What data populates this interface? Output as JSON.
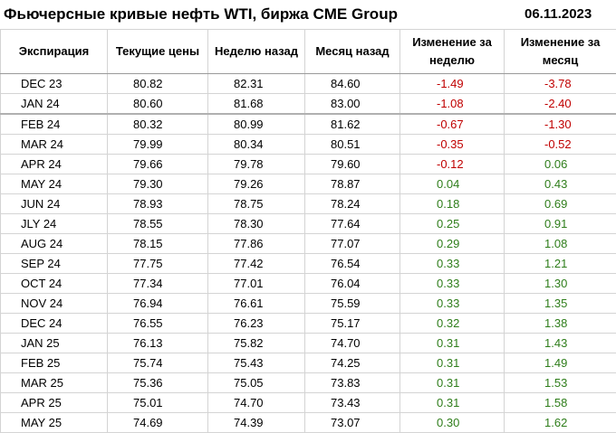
{
  "title": "Фьючерсные кривые нефть WTI, биржа CME Group",
  "date": "06.11.2023",
  "colors": {
    "negative": "#c00000",
    "positive": "#2e7d1a"
  },
  "headers": [
    "Экспирация",
    "Текущие цены",
    "Неделю назад",
    "Месяц назад",
    "Изменение за неделю",
    "Изменение за месяц"
  ],
  "rows": [
    {
      "exp": "DEC 23",
      "cur": "80.82",
      "week": "82.31",
      "month": "84.60",
      "dw": "-1.49",
      "dm": "-3.78"
    },
    {
      "exp": "JAN 24",
      "cur": "80.60",
      "week": "81.68",
      "month": "83.00",
      "dw": "-1.08",
      "dm": "-2.40"
    },
    {
      "exp": "FEB 24",
      "cur": "80.32",
      "week": "80.99",
      "month": "81.62",
      "dw": "-0.67",
      "dm": "-1.30"
    },
    {
      "exp": "MAR 24",
      "cur": "79.99",
      "week": "80.34",
      "month": "80.51",
      "dw": "-0.35",
      "dm": "-0.52"
    },
    {
      "exp": "APR 24",
      "cur": "79.66",
      "week": "79.78",
      "month": "79.60",
      "dw": "-0.12",
      "dm": "0.06"
    },
    {
      "exp": "MAY 24",
      "cur": "79.30",
      "week": "79.26",
      "month": "78.87",
      "dw": "0.04",
      "dm": "0.43"
    },
    {
      "exp": "JUN 24",
      "cur": "78.93",
      "week": "78.75",
      "month": "78.24",
      "dw": "0.18",
      "dm": "0.69"
    },
    {
      "exp": "JLY 24",
      "cur": "78.55",
      "week": "78.30",
      "month": "77.64",
      "dw": "0.25",
      "dm": "0.91"
    },
    {
      "exp": "AUG 24",
      "cur": "78.15",
      "week": "77.86",
      "month": "77.07",
      "dw": "0.29",
      "dm": "1.08"
    },
    {
      "exp": "SEP 24",
      "cur": "77.75",
      "week": "77.42",
      "month": "76.54",
      "dw": "0.33",
      "dm": "1.21"
    },
    {
      "exp": "OCT 24",
      "cur": "77.34",
      "week": "77.01",
      "month": "76.04",
      "dw": "0.33",
      "dm": "1.30"
    },
    {
      "exp": "NOV 24",
      "cur": "76.94",
      "week": "76.61",
      "month": "75.59",
      "dw": "0.33",
      "dm": "1.35"
    },
    {
      "exp": "DEC 24",
      "cur": "76.55",
      "week": "76.23",
      "month": "75.17",
      "dw": "0.32",
      "dm": "1.38"
    },
    {
      "exp": "JAN 25",
      "cur": "76.13",
      "week": "75.82",
      "month": "74.70",
      "dw": "0.31",
      "dm": "1.43"
    },
    {
      "exp": "FEB 25",
      "cur": "75.74",
      "week": "75.43",
      "month": "74.25",
      "dw": "0.31",
      "dm": "1.49"
    },
    {
      "exp": "MAR 25",
      "cur": "75.36",
      "week": "75.05",
      "month": "73.83",
      "dw": "0.31",
      "dm": "1.53"
    },
    {
      "exp": "APR 25",
      "cur": "75.01",
      "week": "74.70",
      "month": "73.43",
      "dw": "0.31",
      "dm": "1.58"
    },
    {
      "exp": "MAY 25",
      "cur": "74.69",
      "week": "74.39",
      "month": "73.07",
      "dw": "0.30",
      "dm": "1.62"
    }
  ]
}
